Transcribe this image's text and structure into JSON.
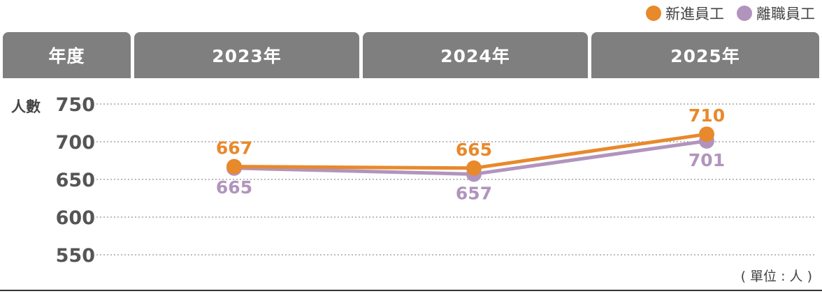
{
  "legend": {
    "new": {
      "label": "新進員工",
      "color": "#e8892b"
    },
    "leave": {
      "label": "離職員工",
      "color": "#b194bd"
    }
  },
  "header": {
    "first": "年度",
    "years": [
      "2023年",
      "2024年",
      "2025年"
    ]
  },
  "chart_data": {
    "type": "line",
    "categories": [
      "2023年",
      "2024年",
      "2025年"
    ],
    "ylabel": "人數",
    "unit": "( 單位 : 人 )",
    "ylim": [
      550,
      750
    ],
    "yticks": [
      750,
      700,
      650,
      600,
      550
    ],
    "grid": true,
    "legend_position": "top-right",
    "series": [
      {
        "name": "新進員工",
        "values": [
          667,
          665,
          710
        ],
        "color": "#e8892b"
      },
      {
        "name": "離職員工",
        "values": [
          665,
          657,
          701
        ],
        "color": "#b194bd"
      }
    ]
  }
}
